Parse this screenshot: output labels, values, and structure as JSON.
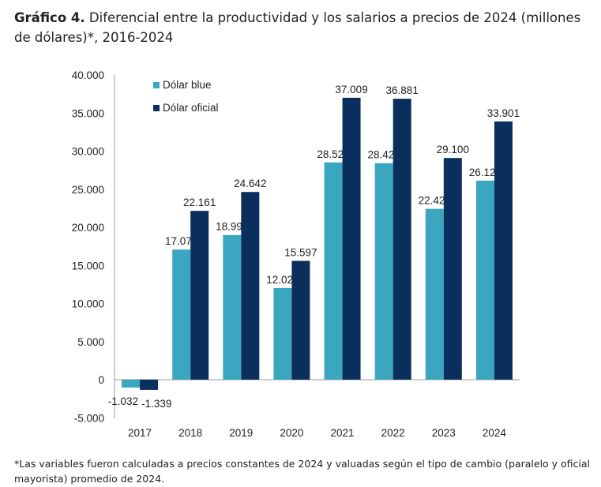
{
  "title_bold": "Gráfico 4.",
  "title_rest": " Diferencial entre la productividad y los salarios a precios de 2024 (millones de dólares)*, 2016-2024",
  "footnote": "*Las variables fueron calculadas a precios constantes de 2024 y valuadas según el tipo de cambio (paralelo y oficial mayorista) promedio de 2024.",
  "chart_data": {
    "type": "bar",
    "categories": [
      "2017",
      "2018",
      "2019",
      "2020",
      "2021",
      "2022",
      "2023",
      "2024"
    ],
    "series": [
      {
        "name": "Dólar blue",
        "color": "#3aa6c0",
        "values": [
          -1032,
          17078,
          18990,
          12020,
          28521,
          28422,
          22426,
          26126
        ],
        "labels": [
          "-1.032",
          "17.078",
          "18.990",
          "12.020",
          "28.521",
          "28.422",
          "22.426",
          "26.126"
        ]
      },
      {
        "name": "Dólar oficial",
        "color": "#0a2f5c",
        "values": [
          -1339,
          22161,
          24642,
          15597,
          37009,
          36881,
          29100,
          33901
        ],
        "labels": [
          "-1.339",
          "22.161",
          "24.642",
          "15.597",
          "37.009",
          "36.881",
          "29.100",
          "33.901"
        ]
      }
    ],
    "yticks": [
      -5000,
      0,
      5000,
      10000,
      15000,
      20000,
      25000,
      30000,
      35000,
      40000
    ],
    "ytick_labels": [
      "-5.000",
      "0",
      "5.000",
      "10.000",
      "15.000",
      "20.000",
      "25.000",
      "30.000",
      "35.000",
      "40.000"
    ],
    "ylim": [
      -5000,
      40000
    ],
    "legend": "top-left"
  }
}
